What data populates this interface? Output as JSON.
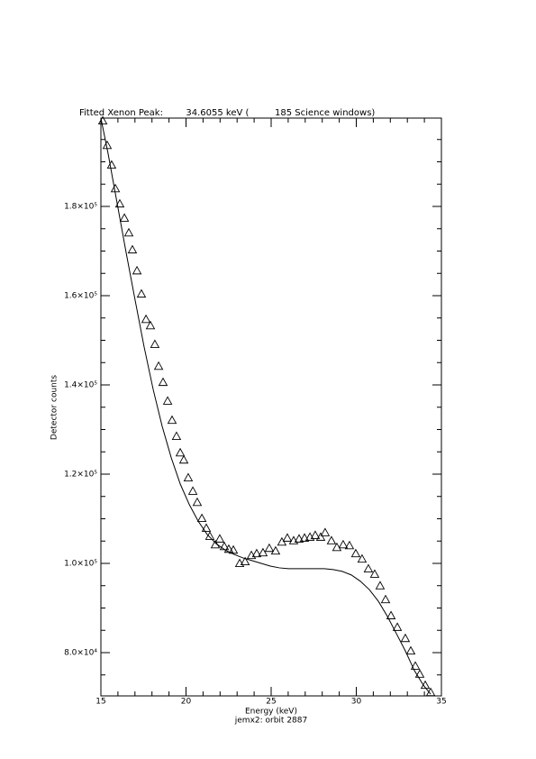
{
  "chart_data": {
    "type": "scatter",
    "title": "Fitted Xenon Peak:        34.6055 keV (         185 Science windows)",
    "x_label": "Energy (keV)",
    "y_label": "Detector counts",
    "footer": "jemx2: orbit 2887",
    "xlim": [
      15,
      35
    ],
    "ylim": [
      70300,
      199800
    ],
    "xticks": [
      15,
      20,
      25,
      30,
      35
    ],
    "xminorticks": [
      16,
      17,
      18,
      19,
      21,
      22,
      23,
      24,
      26,
      27,
      28,
      29,
      31,
      32,
      33,
      34
    ],
    "yticks": [
      {
        "value": 80000,
        "label": "8.0×10⁴"
      },
      {
        "value": 100000,
        "label": "1.0×10⁵"
      },
      {
        "value": 120000,
        "label": "1.2×10⁵"
      },
      {
        "value": 140000,
        "label": "1.4×10⁵"
      },
      {
        "value": 160000,
        "label": "1.6×10⁵"
      },
      {
        "value": 180000,
        "label": "1.8×10⁵"
      }
    ],
    "yminorticks": [
      75000,
      85000,
      90000,
      95000,
      105000,
      110000,
      115000,
      125000,
      130000,
      135000,
      145000,
      150000,
      155000,
      165000,
      170000,
      175000,
      185000,
      190000,
      195000
    ],
    "grid": false,
    "series": [
      {
        "type": "scatter",
        "marker": "triangle",
        "color": "#000000",
        "x": [
          15.11,
          15.37,
          15.63,
          15.85,
          16.11,
          16.38,
          16.64,
          16.85,
          17.12,
          17.38,
          17.65,
          17.91,
          18.17,
          18.39,
          18.65,
          18.92,
          19.18,
          19.44,
          19.66,
          19.87,
          20.13,
          20.4,
          20.66,
          20.93,
          21.19,
          21.4,
          21.72,
          21.98,
          22.25,
          22.51,
          22.78,
          23.15,
          23.47,
          23.84,
          24.15,
          24.52,
          24.89,
          25.26,
          25.63,
          25.95,
          26.32,
          26.64,
          26.96,
          27.28,
          27.59,
          27.91,
          28.17,
          28.54,
          28.86,
          29.23,
          29.6,
          29.97,
          30.34,
          30.71,
          31.08,
          31.4,
          31.72,
          32.04,
          32.41,
          32.88,
          33.2,
          33.47,
          33.73,
          34.05,
          34.37
        ],
        "values": [
          199200,
          193700,
          189300,
          184000,
          180600,
          177400,
          174100,
          170300,
          165600,
          160400,
          154700,
          153300,
          149100,
          144200,
          140600,
          136400,
          132100,
          128500,
          124800,
          123200,
          119200,
          116200,
          113700,
          110100,
          107900,
          106100,
          104200,
          105500,
          103800,
          103200,
          103000,
          100000,
          100400,
          101800,
          102200,
          102400,
          103400,
          102800,
          104800,
          105700,
          105100,
          105500,
          105700,
          105900,
          106300,
          105900,
          106900,
          105100,
          103600,
          104200,
          104000,
          102200,
          101000,
          98800,
          97600,
          95000,
          91900,
          88300,
          85700,
          83200,
          80400,
          77000,
          75200,
          72700,
          71100
        ]
      },
      {
        "type": "line",
        "color": "#000000",
        "x": [
          15.0,
          15.42,
          15.95,
          16.48,
          17.01,
          17.54,
          18.07,
          18.6,
          19.13,
          19.66,
          20.19,
          20.71,
          21.24,
          21.77,
          22.3,
          22.83,
          23.36,
          23.89,
          24.42,
          24.95,
          25.48,
          26.01,
          26.53,
          27.06,
          27.59,
          28.12,
          28.65,
          29.18,
          29.71,
          30.24,
          30.77,
          31.3,
          31.83,
          32.35,
          32.88,
          33.41,
          33.94,
          34.37
        ],
        "values": [
          199800,
          191900,
          180800,
          169700,
          159000,
          148500,
          139000,
          130700,
          123700,
          117800,
          113200,
          109500,
          106500,
          104400,
          103000,
          102000,
          101200,
          100600,
          100000,
          99400,
          99000,
          98800,
          98800,
          98800,
          98800,
          98800,
          98600,
          98200,
          97400,
          96000,
          94100,
          91500,
          88100,
          84300,
          80400,
          76000,
          72700,
          70700
        ]
      }
    ]
  }
}
